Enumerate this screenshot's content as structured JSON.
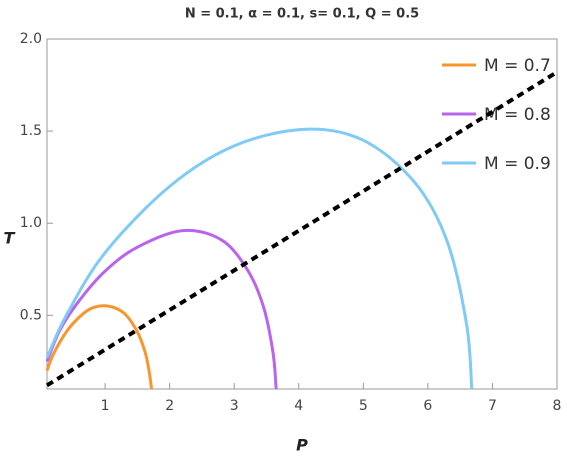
{
  "chart_data": {
    "type": "line",
    "title": "N = 0.1, α = 0.1, s= 0.1, Q = 0.5",
    "x_label": "P",
    "y_label": "T",
    "xlim": [
      0.1,
      8
    ],
    "ylim": [
      0.1,
      2.0
    ],
    "xticks": [
      1,
      2,
      3,
      4,
      5,
      6,
      7,
      8
    ],
    "yticks": [
      0.5,
      {
        "value": 1.0,
        "label": "1.0"
      },
      1.5,
      {
        "value": 2.0,
        "label": "2.0"
      }
    ],
    "grid": false,
    "legend": "top-right",
    "series": [
      {
        "name": "M = 0.7",
        "color": "#f7962d",
        "x": [
          0.1,
          0.2,
          0.4,
          0.6,
          0.8,
          1.05,
          1.3,
          1.5,
          1.62,
          1.68,
          1.72
        ],
        "values": [
          0.2,
          0.29,
          0.41,
          0.49,
          0.54,
          0.55,
          0.51,
          0.41,
          0.3,
          0.2,
          0.1
        ]
      },
      {
        "name": "M = 0.8",
        "color": "#b964ee",
        "x": [
          0.1,
          0.3,
          0.6,
          1.0,
          1.5,
          2.2,
          2.8,
          3.2,
          3.45,
          3.6,
          3.65
        ],
        "values": [
          0.25,
          0.42,
          0.58,
          0.74,
          0.87,
          0.96,
          0.91,
          0.75,
          0.55,
          0.3,
          0.1
        ]
      },
      {
        "name": "M = 0.9",
        "color": "#7fcaf6",
        "x": [
          0.1,
          0.4,
          1,
          2,
          3,
          4.1,
          5,
          5.8,
          6.3,
          6.6,
          6.68
        ],
        "values": [
          0.27,
          0.5,
          0.84,
          1.2,
          1.42,
          1.51,
          1.45,
          1.22,
          0.9,
          0.45,
          0.1
        ]
      }
    ],
    "reference_line": {
      "color": "#000000",
      "x": [
        0.1,
        8
      ],
      "values": [
        0.12,
        1.82
      ]
    }
  }
}
